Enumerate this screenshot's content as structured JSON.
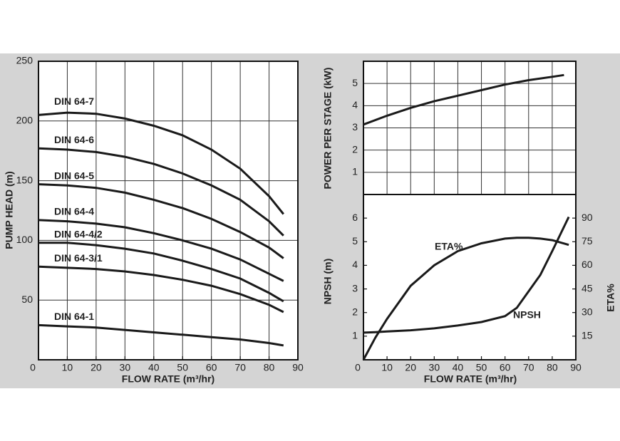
{
  "chart_data": [
    {
      "type": "line",
      "x_label": "FLOW RATE (m³/hr)",
      "y_label": "PUMP HEAD (m)",
      "x": [
        0,
        10,
        20,
        30,
        40,
        50,
        60,
        70,
        80,
        85
      ],
      "series": [
        {
          "name": "DIN 64-7",
          "color": "#1a1a1a",
          "values": [
            205,
            207,
            206,
            202,
            196,
            188,
            176,
            160,
            137,
            122
          ]
        },
        {
          "name": "DIN 64-6",
          "color": "#1a1a1a",
          "values": [
            177,
            176,
            174,
            170,
            164,
            156,
            146,
            134,
            116,
            104
          ]
        },
        {
          "name": "DIN 64-5",
          "color": "#1a1a1a",
          "values": [
            147,
            146,
            144,
            140,
            134,
            127,
            118,
            107,
            94,
            85
          ]
        },
        {
          "name": "DIN 64-4",
          "color": "#1a1a1a",
          "values": [
            117,
            116,
            114,
            111,
            106,
            100,
            93,
            84,
            72,
            66
          ]
        },
        {
          "name": "DIN 64-4/2",
          "color": "#1a1a1a",
          "values": [
            98,
            98,
            96,
            93,
            89,
            83,
            76,
            68,
            56,
            49
          ]
        },
        {
          "name": "DIN 64-3/1",
          "color": "#1a1a1a",
          "values": [
            78,
            77,
            76,
            74,
            71,
            67,
            62,
            55,
            46,
            40
          ]
        },
        {
          "name": "DIN 64-1",
          "color": "#1a1a1a",
          "values": [
            29,
            28,
            27,
            25,
            23,
            21,
            19,
            17,
            14,
            12
          ]
        }
      ],
      "xlim": [
        0,
        90
      ],
      "xticks": [
        0,
        10,
        20,
        30,
        40,
        50,
        60,
        70,
        80,
        90
      ],
      "ylim": [
        0,
        250
      ],
      "yticks": [
        50,
        100,
        150,
        200,
        250
      ],
      "grid": true
    },
    {
      "type": "line",
      "y_label": "POWER PER STAGE (kW)",
      "x": [
        0,
        10,
        20,
        30,
        40,
        50,
        60,
        70,
        80,
        85
      ],
      "series": [
        {
          "color": "#1a1a1a",
          "values": [
            3.15,
            3.55,
            3.9,
            4.2,
            4.45,
            4.7,
            4.95,
            5.15,
            5.3,
            5.38
          ]
        }
      ],
      "xlim": [
        0,
        90
      ],
      "ylim": [
        0,
        6
      ],
      "yticks": [
        1,
        2,
        3,
        4,
        5
      ],
      "grid": true
    },
    {
      "type": "line",
      "x_label": "FLOW RATE (m³/hr)",
      "y_label": "NPSH (m)",
      "y2_label": "ETA%",
      "x": [
        0,
        5,
        10,
        20,
        30,
        40,
        50,
        60,
        65,
        70,
        75,
        80,
        87
      ],
      "series": [
        {
          "name": "NPSH",
          "color": "#1a1a1a",
          "values": [
            1.15,
            1.17,
            1.2,
            1.25,
            1.33,
            1.45,
            1.6,
            1.85,
            2.2,
            2.9,
            3.6,
            4.6,
            6.05
          ]
        },
        {
          "name": "ETA%",
          "color": "#1a1a1a",
          "axis": "y2",
          "values": [
            0,
            14,
            26,
            47,
            60,
            69,
            74,
            77,
            77.5,
            77.5,
            77,
            76,
            73
          ]
        }
      ],
      "xlim": [
        0,
        90
      ],
      "xticks": [
        0,
        10,
        20,
        30,
        40,
        50,
        60,
        70,
        80,
        90
      ],
      "ylim": [
        0,
        7
      ],
      "yticks": [
        1,
        2,
        3,
        4,
        5,
        6
      ],
      "y2lim": [
        0,
        105
      ],
      "y2ticks": [
        15,
        30,
        45,
        60,
        75,
        90
      ],
      "grid": false
    }
  ]
}
